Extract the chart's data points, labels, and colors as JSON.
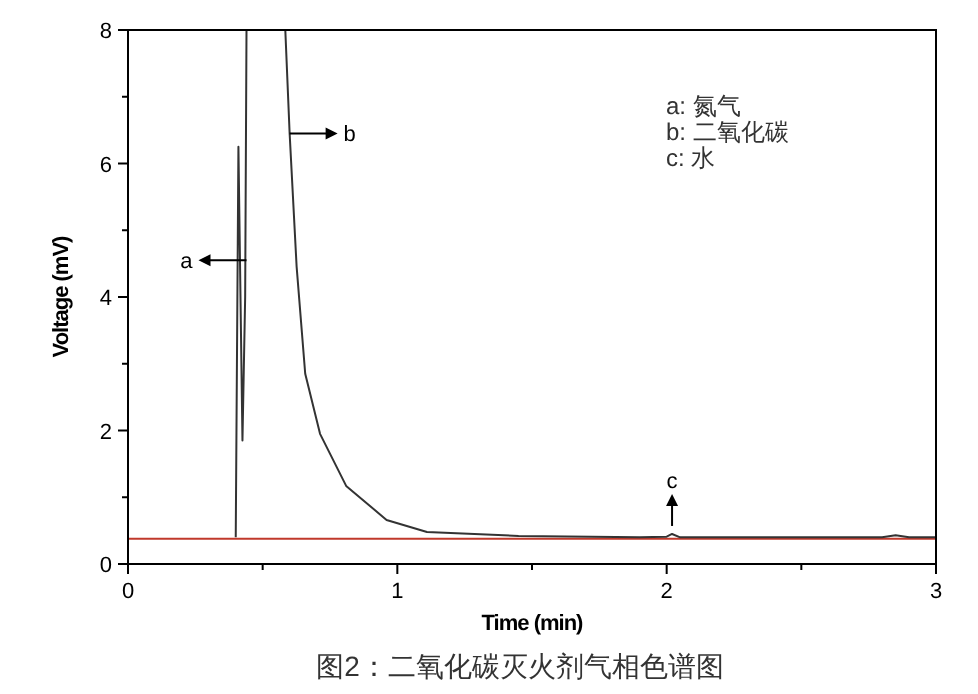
{
  "chart_data": {
    "type": "line",
    "title": "图2：二氧化碳灭火剂气相色谱图",
    "xlabel": "Time (min)",
    "ylabel": "Voltage (mV)",
    "xlim": [
      0,
      3
    ],
    "ylim": [
      0,
      8
    ],
    "xticks": [
      0,
      {
        "value": 0.5,
        "label": null
      },
      1,
      {
        "value": 1.5,
        "label": null
      },
      2,
      {
        "value": 2.5,
        "label": null
      },
      3
    ],
    "yticks": [
      0,
      {
        "value": 1,
        "label": null
      },
      2,
      {
        "value": 3,
        "label": null
      },
      4,
      {
        "value": 5,
        "label": null
      },
      6,
      {
        "value": 7,
        "label": null
      },
      8
    ],
    "grid": false,
    "marker": "none",
    "line_style": "solid",
    "series": [
      {
        "color": "#333333",
        "x": [
          0.4,
          0.41,
          0.425,
          0.435,
          0.44,
          0.445,
          0.58,
          0.584,
          0.6,
          0.626,
          0.658,
          0.713,
          0.81,
          0.96,
          1.11,
          1.45,
          1.9,
          2.0,
          2.02,
          2.05,
          2.8,
          2.85,
          2.9,
          3.0
        ],
        "values": [
          0.4,
          6.25,
          1.85,
          4.0,
          8,
          8,
          8,
          8,
          6.46,
          4.46,
          2.85,
          1.95,
          1.17,
          0.66,
          0.48,
          0.42,
          0.4,
          0.41,
          0.45,
          0.4,
          0.4,
          0.43,
          0.4,
          0.4
        ]
      },
      {
        "color": "#c0392b",
        "x": [
          0,
          3
        ],
        "values": [
          0.38,
          0.38
        ]
      }
    ],
    "annotations": [
      {
        "text": "a",
        "x": 0.44,
        "y": 4.55
      },
      {
        "text": "b",
        "x": 0.6,
        "y": 6.45
      },
      {
        "text": "c",
        "x": 2.02,
        "y": 0.45
      },
      "a:  氮气",
      "b:  二氧化碳",
      "c:  水"
    ]
  }
}
